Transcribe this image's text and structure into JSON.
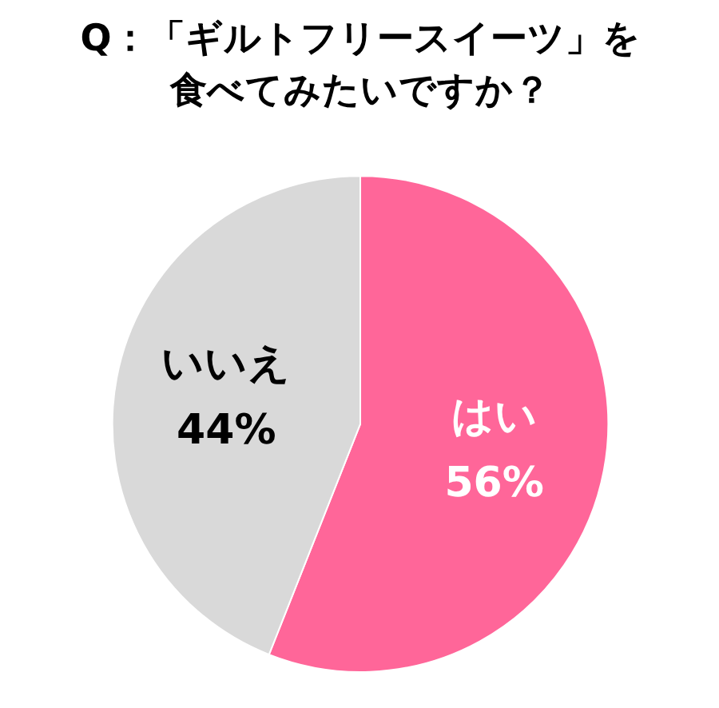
{
  "chart_data": {
    "type": "pie",
    "title": "Q：「ギルトフリースイーツ」を食べてみたいですか？",
    "categories": [
      "はい",
      "いいえ"
    ],
    "values": [
      56,
      44
    ],
    "colors": [
      "#ff6699",
      "#d9d9d9"
    ],
    "value_labels": [
      "56%",
      "44%"
    ]
  }
}
